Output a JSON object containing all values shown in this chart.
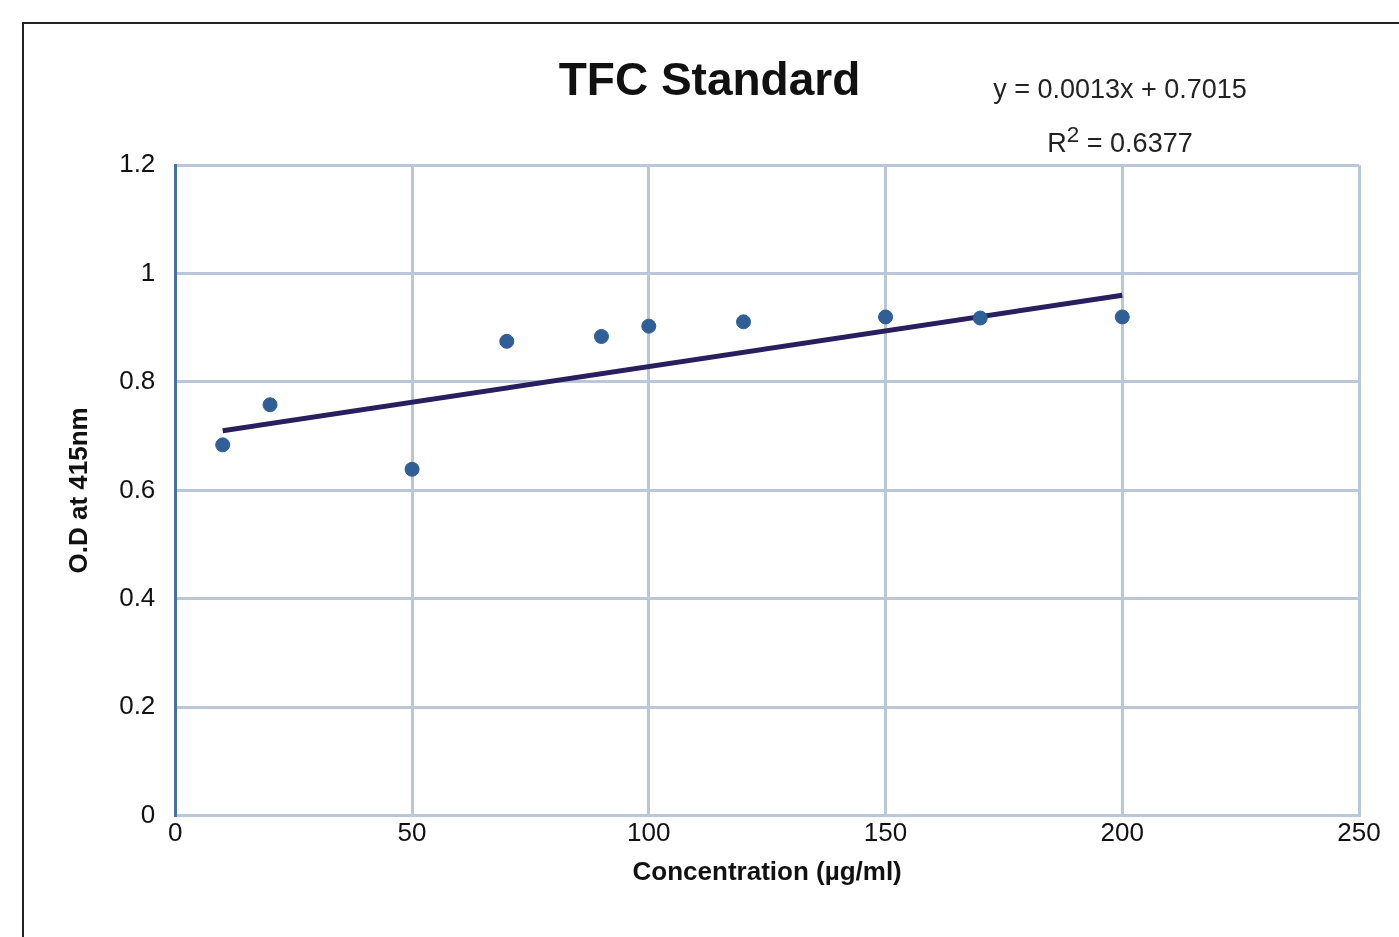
{
  "chart_data": {
    "type": "scatter",
    "title": "TFC Standard",
    "xlabel": "Concentration (µg/ml)",
    "ylabel": "O.D at 415nm",
    "annotations": [
      "y = 0.0013x + 0.7015",
      "R$^{2}$ = 0.6377"
    ],
    "series": [
      {
        "type": "scatter",
        "color": "#2f5f96",
        "x": [
          10,
          20,
          50,
          70,
          90,
          100,
          120,
          150,
          170,
          200
        ],
        "values": [
          0.684,
          0.758,
          0.639,
          0.875,
          0.884,
          0.903,
          0.911,
          0.92,
          0.918,
          0.92
        ]
      },
      {
        "type": "line",
        "color": "#2a1f5e",
        "marker": "none",
        "x": [
          10,
          200
        ],
        "values": [
          0.71,
          0.96
        ]
      }
    ],
    "xlim": [
      0,
      250
    ],
    "xticks": [
      0,
      50,
      100,
      150,
      200,
      250
    ],
    "ylim": [
      0,
      1.2
    ],
    "yticks": [
      0,
      0.2,
      0.4,
      0.6,
      0.8,
      1,
      1.2
    ],
    "grid": true,
    "legend": false,
    "marker": "circle"
  }
}
